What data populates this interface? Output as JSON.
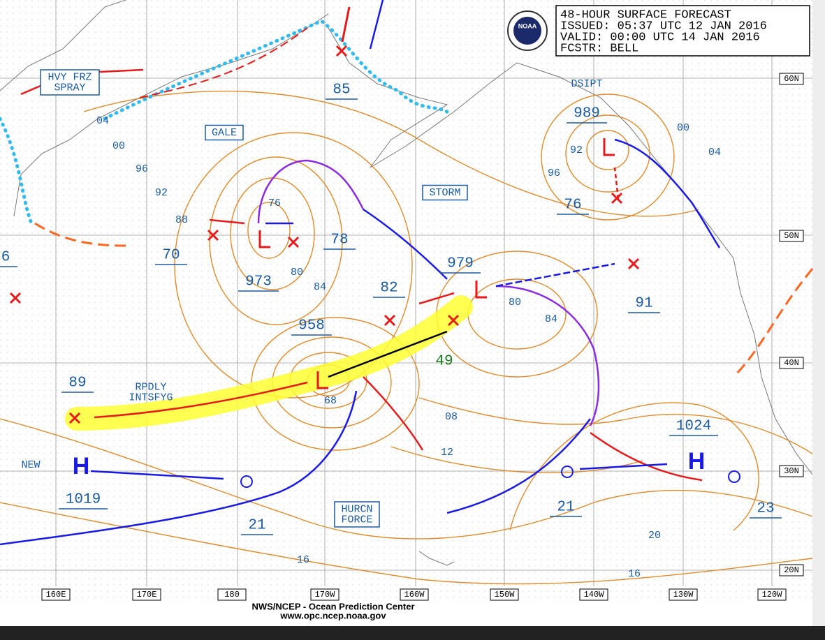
{
  "header": {
    "lines": [
      "48-HOUR SURFACE FORECAST",
      "ISSUED: 05:37 UTC 12 JAN 2016",
      "VALID:  00:00 UTC 14 JAN 2016",
      "FCSTR: BELL"
    ],
    "logo": "NOAA"
  },
  "boxed_labels": [
    [
      "HVY FRZ",
      "SPRAY"
    ],
    [
      "GALE"
    ],
    [
      "STORM"
    ],
    [
      "HURCN",
      "FORCE"
    ]
  ],
  "plain_labels": [
    [
      "DSIPT"
    ],
    [
      "RPDLY",
      "INTSFYG"
    ],
    [
      "NEW"
    ]
  ],
  "highs": [
    "H",
    "H"
  ],
  "pressures": [
    "85",
    "989",
    "76",
    "78",
    "70",
    "973",
    "958",
    "979",
    "82",
    "91",
    "89",
    "1019",
    "21",
    "21",
    "1024",
    "23",
    "49",
    "6"
  ],
  "isobar_labels": [
    "04",
    "00",
    "96",
    "92",
    "88",
    "76",
    "80",
    "84",
    "68",
    "80",
    "84",
    "08",
    "12",
    "16",
    "20",
    "16",
    "00",
    "04",
    "92",
    "96"
  ],
  "latitudes": [
    "60N",
    "50N",
    "40N",
    "30N",
    "20N"
  ],
  "longitudes": [
    "160E",
    "170E",
    "180",
    "170W",
    "160W",
    "150W",
    "140W",
    "130W",
    "120W"
  ],
  "footer": [
    "NWS/NCEP - Ocean Prediction Center",
    "www.opc.ncep.noaa.gov"
  ]
}
